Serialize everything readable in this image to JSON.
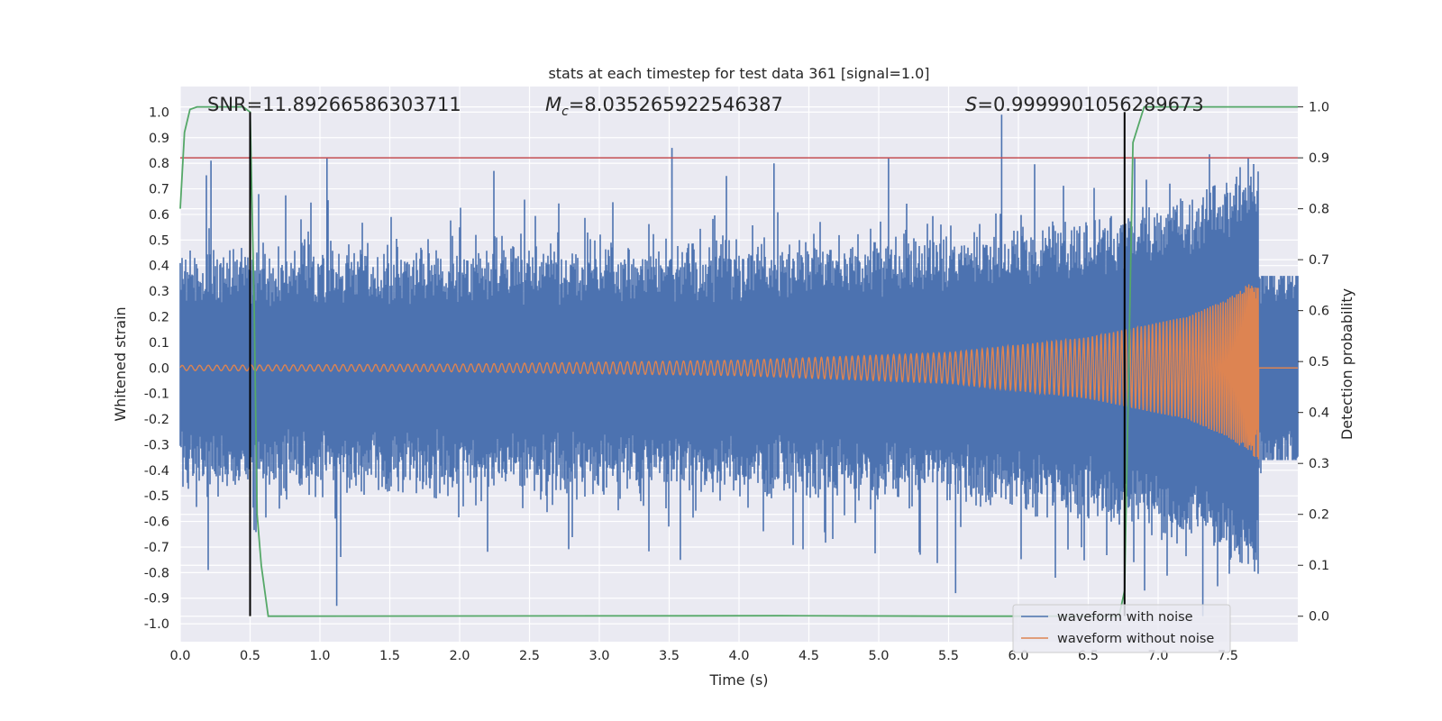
{
  "chart_data": {
    "type": "line",
    "title": "stats at each timestep for test data 361 [signal=1.0]",
    "xlabel": "Time (s)",
    "ylabel": "Whitened strain",
    "y2label": "Detection probability",
    "xlim": [
      0.0,
      8.0
    ],
    "ylim": [
      -1.07,
      1.1
    ],
    "y2lim": [
      -0.05,
      1.04
    ],
    "xticks": [
      "0.0",
      "0.5",
      "1.0",
      "1.5",
      "2.0",
      "2.5",
      "3.0",
      "3.5",
      "4.0",
      "4.5",
      "5.0",
      "5.5",
      "6.0",
      "6.5",
      "7.0",
      "7.5"
    ],
    "yticks": [
      "1.0",
      "0.9",
      "0.8",
      "0.7",
      "0.6",
      "0.5",
      "0.4",
      "0.3",
      "0.2",
      "0.1",
      "0.0",
      "-0.1",
      "-0.2",
      "-0.3",
      "-0.4",
      "-0.5",
      "-0.6",
      "-0.7",
      "-0.8",
      "-0.9",
      "-1.0"
    ],
    "y2ticks": [
      "1.0",
      "0.9",
      "0.8",
      "0.7",
      "0.6",
      "0.5",
      "0.4",
      "0.3",
      "0.2",
      "0.1",
      "0.0"
    ],
    "grid": true,
    "annotations": {
      "snr": "SNR=11.89266586303711",
      "mc_symbol": "M",
      "mc_sub": "c",
      "mc_value": "=8.035265922546387",
      "s_symbol": "S",
      "s_value": "=0.9999901056289673"
    },
    "series": [
      {
        "name": "waveform with noise",
        "color": "#4c72b0",
        "noise_envelope_typical": 0.4,
        "visible_peaks": [
          {
            "x": 0.22,
            "y": 0.81
          },
          {
            "x": 1.05,
            "y": 0.82
          },
          {
            "x": 3.52,
            "y": 0.86
          },
          {
            "x": 4.25,
            "y": 0.8
          },
          {
            "x": 5.07,
            "y": 0.82
          },
          {
            "x": 5.88,
            "y": 0.99
          },
          {
            "x": 0.2,
            "y": -0.79
          },
          {
            "x": 1.12,
            "y": -0.93
          },
          {
            "x": 3.58,
            "y": -0.75
          },
          {
            "x": 5.55,
            "y": -0.88
          },
          {
            "x": 7.32,
            "y": -0.97
          }
        ]
      },
      {
        "name": "waveform without noise",
        "color": "#dd8452",
        "chirp_amplitude": [
          {
            "x": 0.0,
            "y": 0.01
          },
          {
            "x": 2.0,
            "y": 0.015
          },
          {
            "x": 4.0,
            "y": 0.03
          },
          {
            "x": 5.5,
            "y": 0.06
          },
          {
            "x": 6.5,
            "y": 0.12
          },
          {
            "x": 7.2,
            "y": 0.2
          },
          {
            "x": 7.5,
            "y": 0.27
          },
          {
            "x": 7.65,
            "y": 0.33
          },
          {
            "x": 7.72,
            "y": 0.36
          }
        ],
        "merger_time": 7.72
      },
      {
        "name": "detection probability",
        "axis": "right",
        "color": "#55a868",
        "points": [
          [
            0.0,
            0.8
          ],
          [
            0.03,
            0.95
          ],
          [
            0.07,
            0.995
          ],
          [
            0.12,
            1.0
          ],
          [
            0.45,
            1.0
          ],
          [
            0.5,
            0.99
          ],
          [
            0.53,
            0.6
          ],
          [
            0.55,
            0.2
          ],
          [
            0.58,
            0.1
          ],
          [
            0.63,
            0.0
          ],
          [
            4.3,
            0.001
          ],
          [
            5.6,
            0.0
          ],
          [
            6.72,
            0.0
          ],
          [
            6.76,
            0.05
          ],
          [
            6.82,
            0.93
          ],
          [
            6.9,
            1.0
          ],
          [
            8.0,
            1.0
          ]
        ]
      }
    ],
    "threshold": {
      "axis": "right",
      "value": 0.9,
      "color": "#c44e52"
    },
    "vertical_markers": [
      {
        "x": 0.5,
        "y_top": 1.0,
        "y_bottom": -0.97
      },
      {
        "x": 6.76,
        "y_top": 1.0,
        "y_bottom": -0.97
      }
    ],
    "legend": {
      "position": "lower-right",
      "entries": [
        {
          "label": "waveform with noise",
          "color": "#4c72b0"
        },
        {
          "label": "waveform without noise",
          "color": "#dd8452"
        }
      ]
    },
    "colors": {
      "plot_bg": "#eaeaf2",
      "grid": "#ffffff",
      "text": "#262626",
      "marker": "#000000"
    }
  }
}
